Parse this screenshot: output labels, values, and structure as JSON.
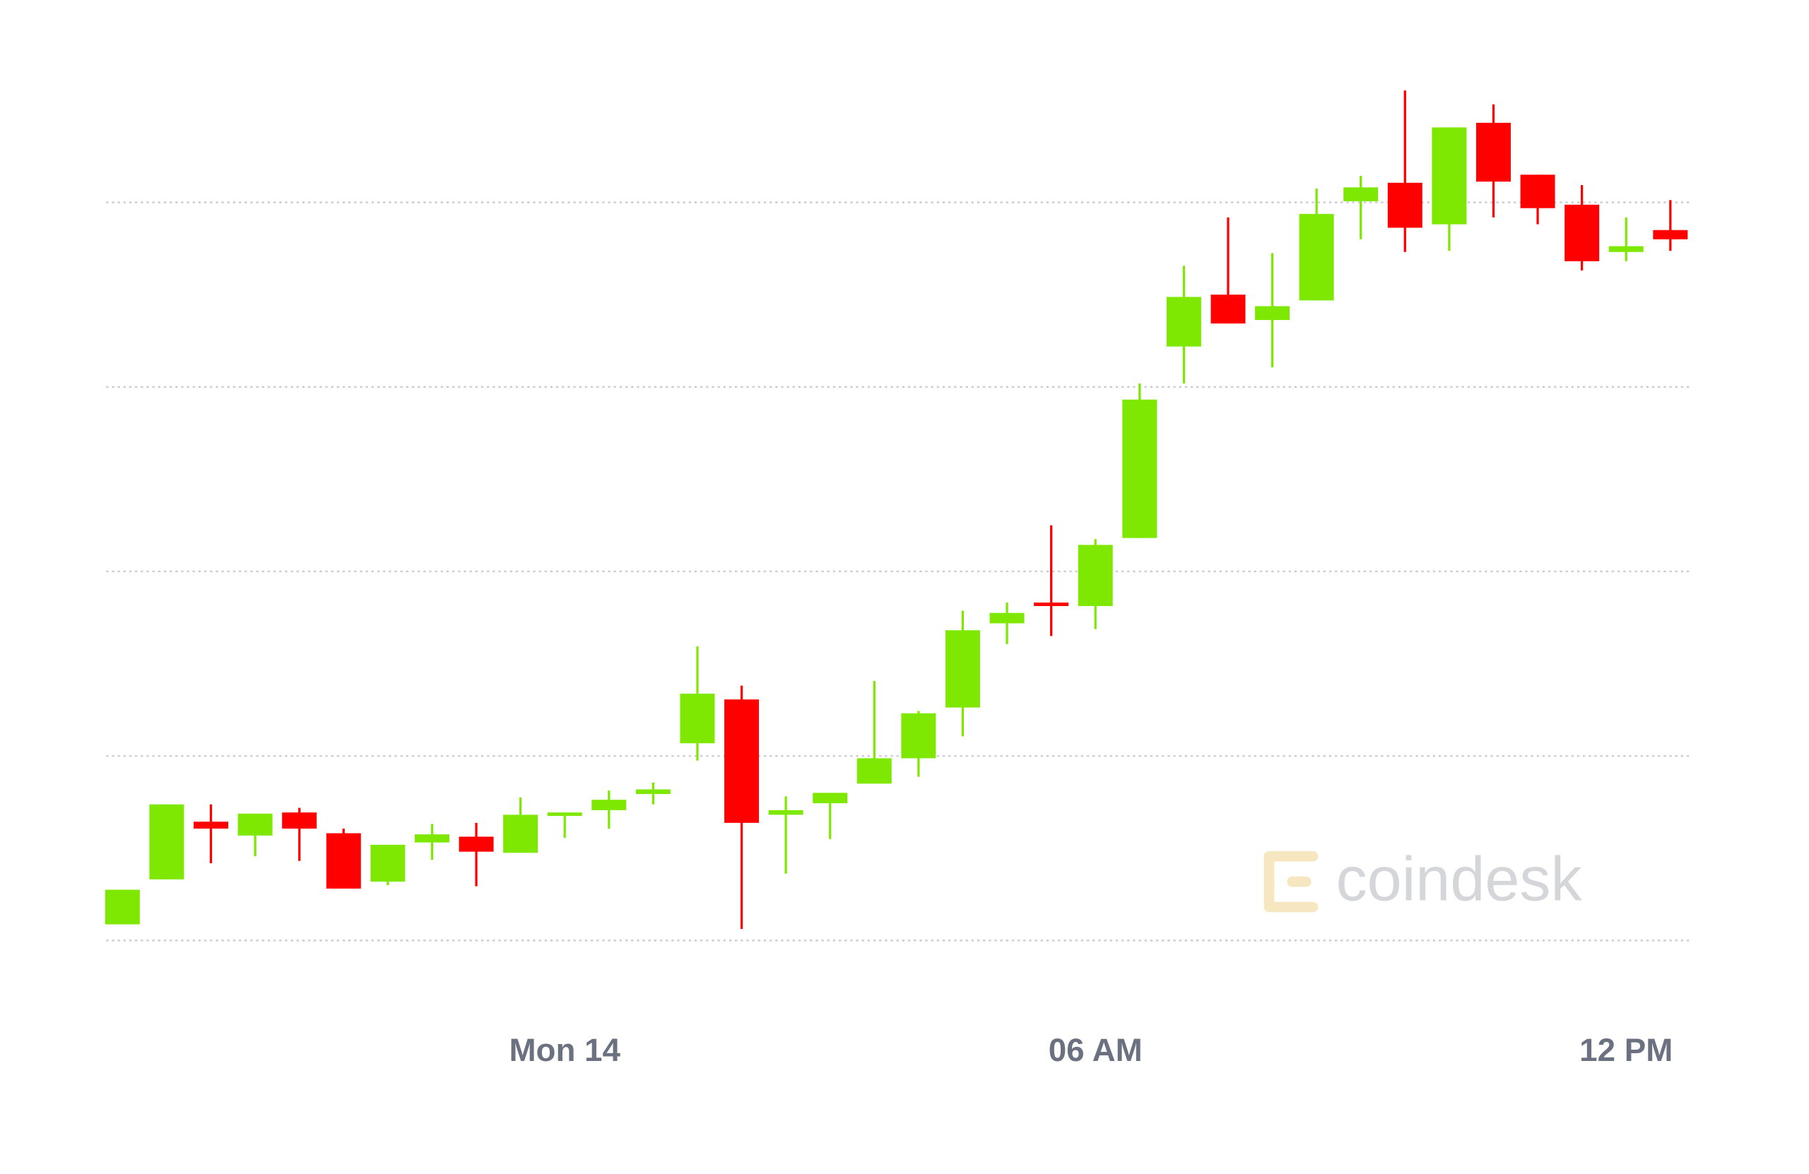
{
  "chart_data": {
    "type": "candlestick",
    "categories": [
      null,
      null,
      null,
      null,
      null,
      null,
      null,
      null,
      null,
      null,
      "Mon 14",
      null,
      null,
      null,
      null,
      null,
      null,
      null,
      null,
      null,
      null,
      null,
      "06 AM",
      null,
      null,
      null,
      null,
      null,
      null,
      null,
      null,
      null,
      null,
      null,
      "12 PM",
      null
    ],
    "open": [
      14,
      53,
      103,
      91,
      111,
      93,
      51,
      85,
      90,
      76,
      108,
      113,
      127,
      171,
      209,
      109,
      119,
      136,
      158,
      202,
      275,
      293,
      290,
      349,
      515,
      560,
      538,
      555,
      641,
      657,
      621,
      709,
      664,
      638,
      597,
      616
    ],
    "high": [
      44,
      118,
      118,
      110,
      115,
      97,
      83,
      101,
      102,
      124,
      111,
      130,
      137,
      255,
      221,
      125,
      128,
      225,
      199,
      286,
      293,
      360,
      348,
      483,
      585,
      627,
      596,
      652,
      663,
      737,
      705,
      725,
      664,
      655,
      627,
      642
    ],
    "low": [
      14,
      53,
      67,
      73,
      69,
      45,
      48,
      70,
      47,
      76,
      89,
      97,
      118,
      156,
      10,
      58,
      88,
      136,
      142,
      177,
      257,
      264,
      270,
      349,
      483,
      535,
      497,
      555,
      608,
      597,
      598,
      627,
      621,
      581,
      589,
      598
    ],
    "close": [
      44,
      118,
      97,
      110,
      97,
      45,
      83,
      92,
      77,
      109,
      111,
      122,
      131,
      214,
      102,
      113,
      128,
      158,
      197,
      269,
      284,
      291,
      343,
      469,
      558,
      535,
      550,
      630,
      653,
      618,
      705,
      658,
      635,
      589,
      602,
      608
    ],
    "up_color": "#7ee802",
    "down_color": "#ff0000",
    "ylim": [
      0,
      760
    ],
    "yticks": [
      0,
      160,
      320,
      480,
      640
    ],
    "grid": true,
    "watermark": "coindesk"
  }
}
